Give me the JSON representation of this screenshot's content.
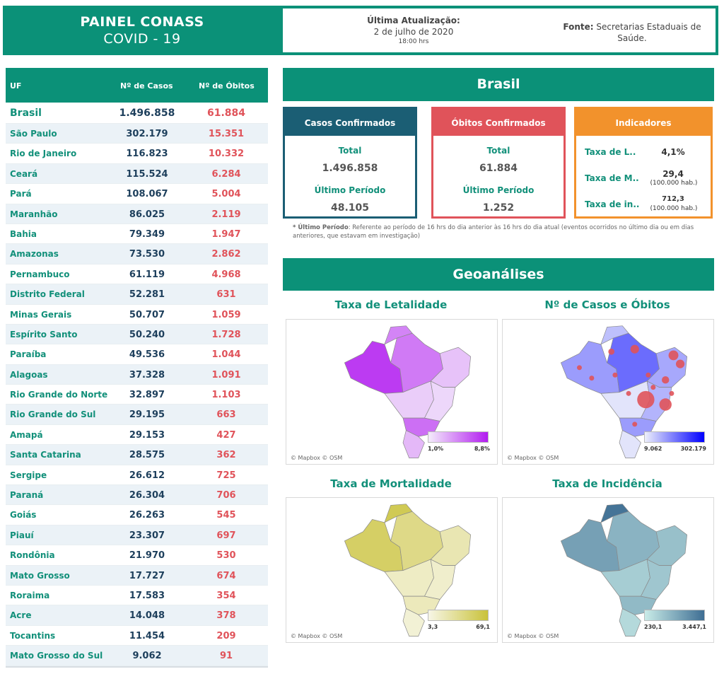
{
  "header": {
    "title_line1": "PAINEL CONASS",
    "title_line2": "COVID - 19",
    "update_label": "Última Atualização:",
    "update_date": "2 de julho de 2020",
    "update_time": "18:00 hrs",
    "source_label": "Fonte:",
    "source_text": "Secretarias Estaduais de Saúde."
  },
  "table": {
    "headers": {
      "uf": "UF",
      "cases": "Nº de Casos",
      "deaths": "Nº de Óbitos"
    },
    "total": {
      "uf": "Brasil",
      "cases": "1.496.858",
      "deaths": "61.884"
    },
    "rows": [
      {
        "uf": "São Paulo",
        "cases": "302.179",
        "deaths": "15.351"
      },
      {
        "uf": "Rio de Janeiro",
        "cases": "116.823",
        "deaths": "10.332"
      },
      {
        "uf": "Ceará",
        "cases": "115.524",
        "deaths": "6.284"
      },
      {
        "uf": "Pará",
        "cases": "108.067",
        "deaths": "5.004"
      },
      {
        "uf": "Maranhão",
        "cases": "86.025",
        "deaths": "2.119"
      },
      {
        "uf": "Bahia",
        "cases": "79.349",
        "deaths": "1.947"
      },
      {
        "uf": "Amazonas",
        "cases": "73.530",
        "deaths": "2.862"
      },
      {
        "uf": "Pernambuco",
        "cases": "61.119",
        "deaths": "4.968"
      },
      {
        "uf": "Distrito Federal",
        "cases": "52.281",
        "deaths": "631"
      },
      {
        "uf": "Minas Gerais",
        "cases": "50.707",
        "deaths": "1.059"
      },
      {
        "uf": "Espírito Santo",
        "cases": "50.240",
        "deaths": "1.728"
      },
      {
        "uf": "Paraíba",
        "cases": "49.536",
        "deaths": "1.044"
      },
      {
        "uf": "Alagoas",
        "cases": "37.328",
        "deaths": "1.091"
      },
      {
        "uf": "Rio Grande do Norte",
        "cases": "32.897",
        "deaths": "1.103"
      },
      {
        "uf": "Rio Grande do Sul",
        "cases": "29.195",
        "deaths": "663"
      },
      {
        "uf": "Amapá",
        "cases": "29.153",
        "deaths": "427"
      },
      {
        "uf": "Santa Catarina",
        "cases": "28.575",
        "deaths": "362"
      },
      {
        "uf": "Sergipe",
        "cases": "26.612",
        "deaths": "725"
      },
      {
        "uf": "Paraná",
        "cases": "26.304",
        "deaths": "706"
      },
      {
        "uf": "Goiás",
        "cases": "26.263",
        "deaths": "545"
      },
      {
        "uf": "Piauí",
        "cases": "23.307",
        "deaths": "697"
      },
      {
        "uf": "Rondônia",
        "cases": "21.970",
        "deaths": "530"
      },
      {
        "uf": "Mato Grosso",
        "cases": "17.727",
        "deaths": "674"
      },
      {
        "uf": "Roraima",
        "cases": "17.583",
        "deaths": "354"
      },
      {
        "uf": "Acre",
        "cases": "14.048",
        "deaths": "378"
      },
      {
        "uf": "Tocantins",
        "cases": "11.454",
        "deaths": "209"
      },
      {
        "uf": "Mato Grosso do Sul",
        "cases": "9.062",
        "deaths": "91"
      }
    ]
  },
  "brasil": {
    "title": "Brasil",
    "cases_card": {
      "title": "Casos Confirmados",
      "total_label": "Total",
      "total": "1.496.858",
      "period_label": "Último Período",
      "period": "48.105"
    },
    "deaths_card": {
      "title": "Óbitos Confirmados",
      "total_label": "Total",
      "total": "61.884",
      "period_label": "Último Período",
      "period": "1.252"
    },
    "indicators": {
      "title": "Indicadores",
      "lethality_label": "Taxa de L..",
      "lethality_value": "4,1%",
      "mortality_label": "Taxa de M..",
      "mortality_value": "29,4",
      "mortality_unit": "(100.000 hab.)",
      "incidence_label": "Taxa de in..",
      "incidence_value": "712,3",
      "incidence_unit": "(100.000 hab.)"
    },
    "note_label": "* Último Período",
    "note_text": ": Referente ao período de 16 hrs do dia anterior às 16 hrs do dia atual (eventos ocorridos no último dia ou em dias anteriores, que estavam em investigação)"
  },
  "geo": {
    "title": "Geoanálises",
    "credit": "© Mapbox © OSM",
    "maps": [
      {
        "title": "Taxa de Letalidade",
        "legend_min": "1,0%",
        "legend_max": "8,8%",
        "color_low": "#f4ecfb",
        "color_high": "#b21cf0"
      },
      {
        "title": "Nº de Casos e Óbitos",
        "legend_min": "9.062",
        "legend_max": "302.179",
        "color_low": "#eef0fb",
        "color_high": "#0000ff"
      },
      {
        "title": "Taxa de Mortalidade",
        "legend_min": "3,3",
        "legend_max": "69,1",
        "color_low": "#f7f6e6",
        "color_high": "#c9c23a"
      },
      {
        "title": "Taxa de Incidência",
        "legend_min": "230,1",
        "legend_max": "3.447,1",
        "color_low": "#c9ece8",
        "color_high": "#3e6e93"
      }
    ]
  },
  "colors": {
    "primary": "#0b9178",
    "cases": "#1b5e74",
    "deaths": "#e0535a",
    "indicators": "#f2922c"
  }
}
